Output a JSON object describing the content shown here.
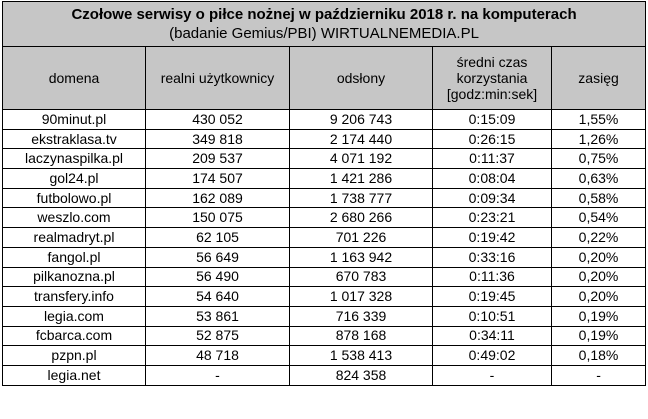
{
  "table": {
    "title": "Czołowe serwisy o piłce nożnej w październiku 2018 r. na komputerach",
    "subtitle": "(badanie Gemius/PBI) WIRTUALNEMEDIA.PL",
    "headers": {
      "domain": "domena",
      "users": "realni użytkownicy",
      "views": "odsłony",
      "time_line1": "średni czas",
      "time_line2": "korzystania",
      "time_line3": "[godz:min:sek]",
      "reach": "zasięg"
    },
    "rows": [
      {
        "domain": "90minut.pl",
        "users": "430 052",
        "views": "9 206 743",
        "time": "0:15:09",
        "reach": "1,55%"
      },
      {
        "domain": "ekstraklasa.tv",
        "users": "349 818",
        "views": "2 174 440",
        "time": "0:26:15",
        "reach": "1,26%"
      },
      {
        "domain": "laczynaspilka.pl",
        "users": "209 537",
        "views": "4 071 192",
        "time": "0:11:37",
        "reach": "0,75%"
      },
      {
        "domain": "gol24.pl",
        "users": "174 507",
        "views": "1 421 286",
        "time": "0:08:04",
        "reach": "0,63%"
      },
      {
        "domain": "futbolowo.pl",
        "users": "162 089",
        "views": "1 738 777",
        "time": "0:09:34",
        "reach": "0,58%"
      },
      {
        "domain": "weszlo.com",
        "users": "150 075",
        "views": "2 680 266",
        "time": "0:23:21",
        "reach": "0,54%"
      },
      {
        "domain": "realmadryt.pl",
        "users": "62 105",
        "views": "701 226",
        "time": "0:19:42",
        "reach": "0,22%"
      },
      {
        "domain": "fangol.pl",
        "users": "56 649",
        "views": "1 163 942",
        "time": "0:33:16",
        "reach": "0,20%"
      },
      {
        "domain": "pilkanozna.pl",
        "users": "56 490",
        "views": "670 783",
        "time": "0:11:36",
        "reach": "0,20%"
      },
      {
        "domain": "transfery.info",
        "users": "54 640",
        "views": "1 017 328",
        "time": "0:19:45",
        "reach": "0,20%"
      },
      {
        "domain": "legia.com",
        "users": "53 861",
        "views": "716 339",
        "time": "0:10:51",
        "reach": "0,19%"
      },
      {
        "domain": "fcbarca.com",
        "users": "52 875",
        "views": "878 168",
        "time": "0:34:11",
        "reach": "0,19%"
      },
      {
        "domain": "pzpn.pl",
        "users": "48 718",
        "views": "1 538 413",
        "time": "0:49:02",
        "reach": "0,18%"
      },
      {
        "domain": "legia.net",
        "users": "-",
        "views": "824 358",
        "time": "-",
        "reach": "-"
      }
    ]
  }
}
